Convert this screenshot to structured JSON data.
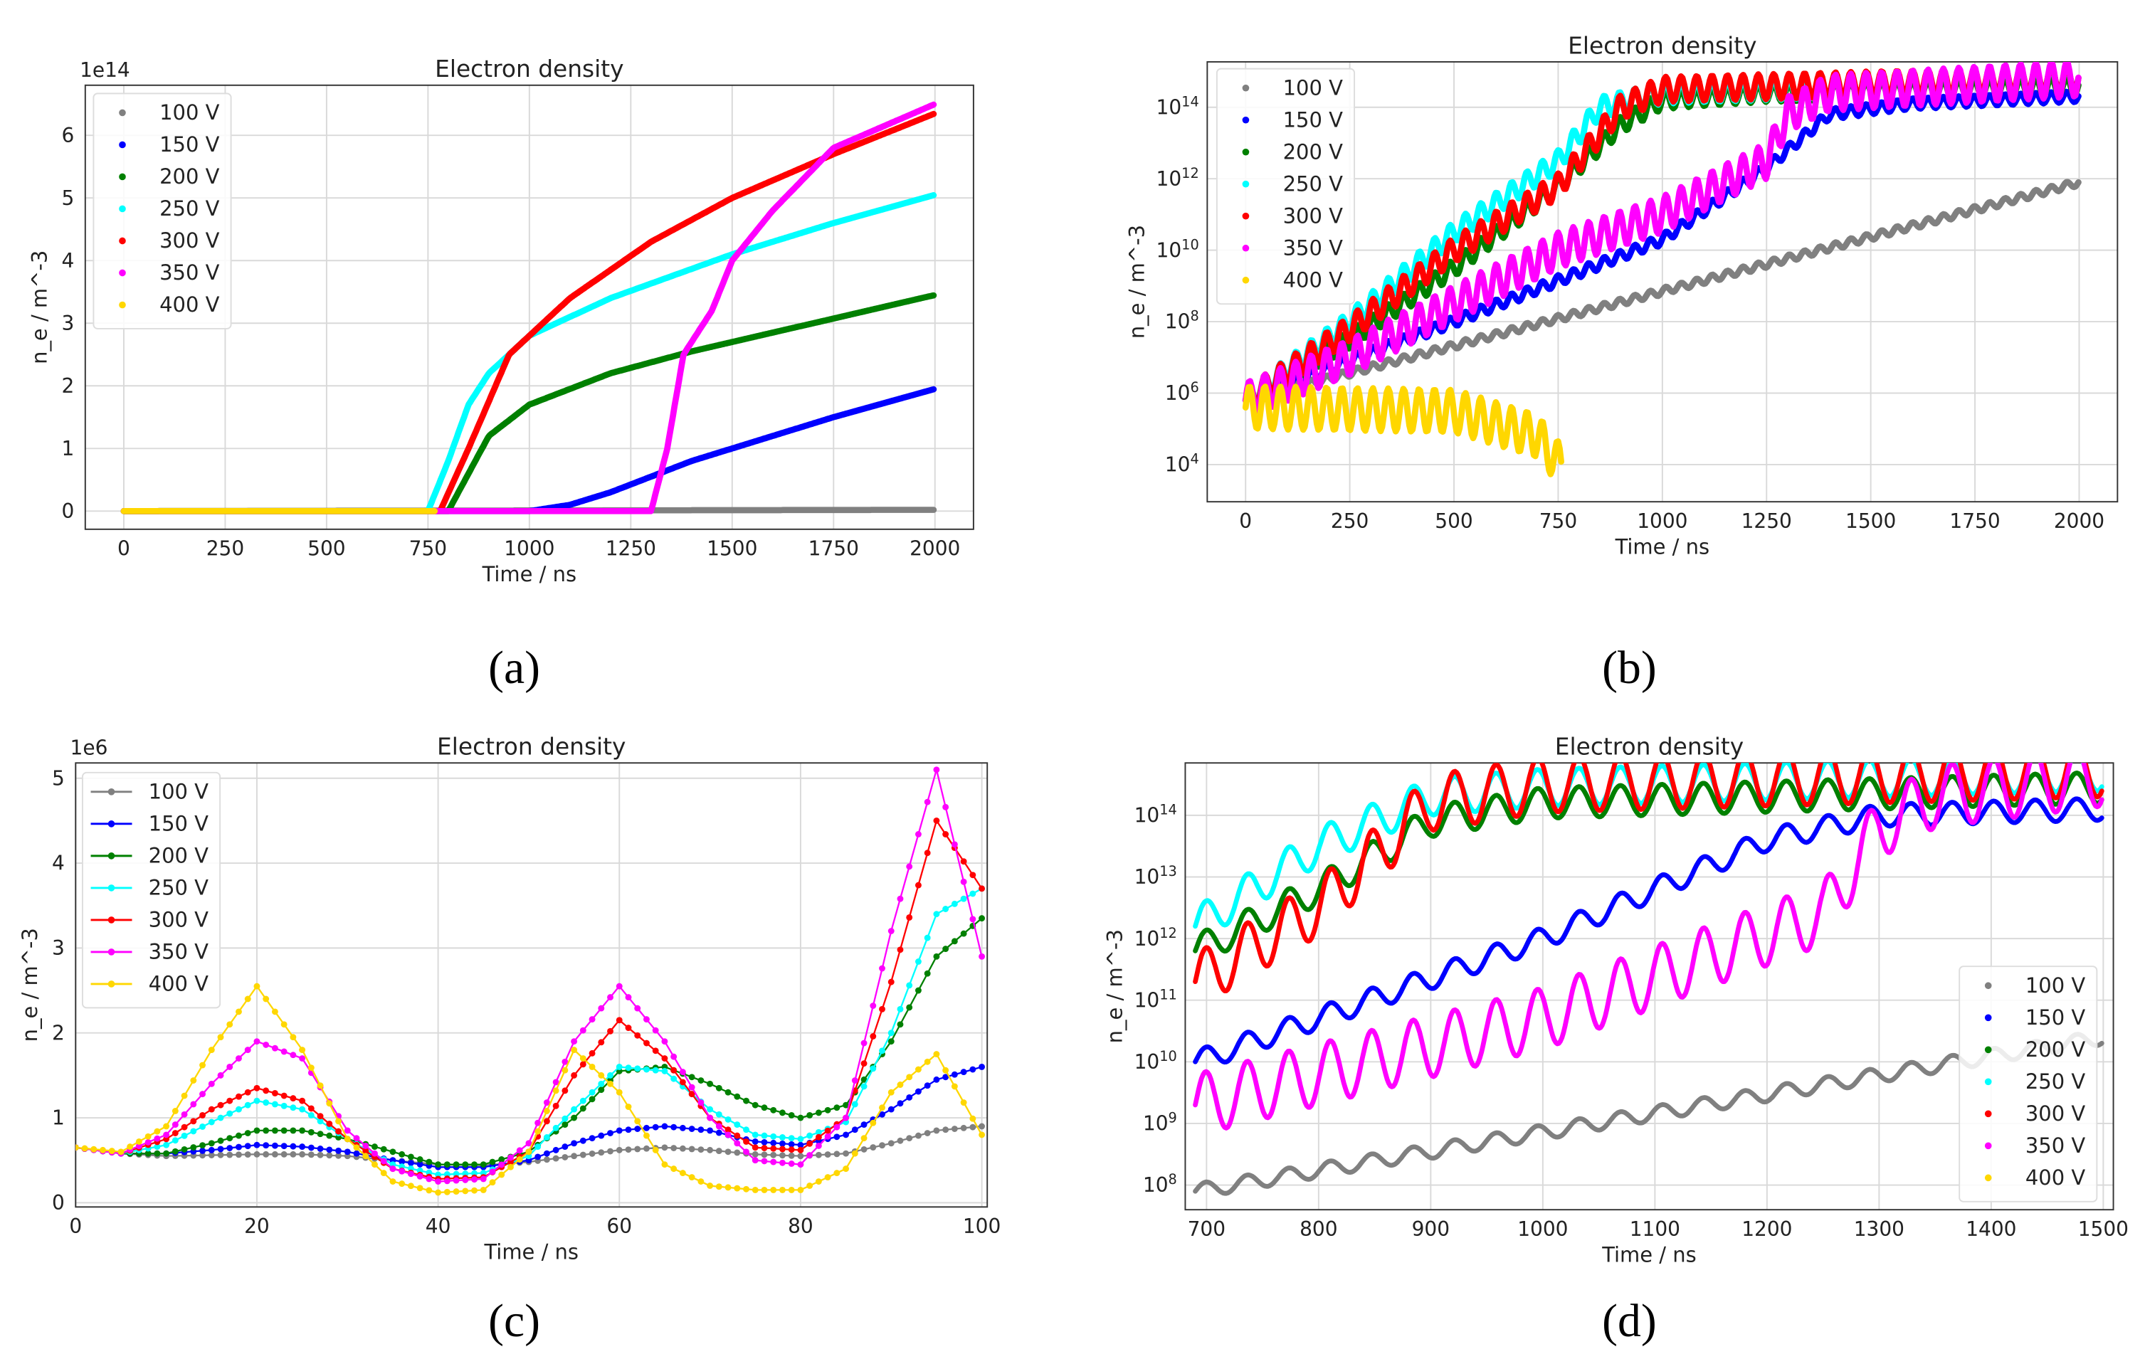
{
  "captions": [
    "(a)",
    "(b)",
    "(c)",
    "(d)"
  ],
  "chart_data": [
    {
      "type": "scatter",
      "title": "Electron density",
      "xlabel": "Time / ns",
      "ylabel": "n_e / m^-3",
      "yscale": "linear",
      "offset_label": "1e14",
      "xlim": [
        -95,
        2095
      ],
      "ylim": [
        -0.29,
        6.8
      ],
      "xticks": [
        0,
        250,
        500,
        750,
        1000,
        1250,
        1500,
        1750,
        2000
      ],
      "yticks": [
        0,
        1,
        2,
        3,
        4,
        5,
        6
      ],
      "grid": true,
      "legend": "top-left",
      "legend_style": "dot",
      "series": [
        {
          "name": "100 V",
          "color": "#808080",
          "points": [
            [
              0,
              0
            ],
            [
              2000,
              0.02
            ]
          ]
        },
        {
          "name": "150 V",
          "color": "#0000ff",
          "points": [
            [
              0,
              0
            ],
            [
              1000,
              0
            ],
            [
              1100,
              0.1
            ],
            [
              1200,
              0.3
            ],
            [
              1300,
              0.55
            ],
            [
              1400,
              0.8
            ],
            [
              1500,
              1.0
            ],
            [
              1750,
              1.5
            ],
            [
              2000,
              1.95
            ]
          ]
        },
        {
          "name": "200 V",
          "color": "#008000",
          "points": [
            [
              0,
              0
            ],
            [
              800,
              0
            ],
            [
              850,
              0.6
            ],
            [
              900,
              1.2
            ],
            [
              1000,
              1.7
            ],
            [
              1200,
              2.2
            ],
            [
              1400,
              2.55
            ],
            [
              1600,
              2.85
            ],
            [
              1800,
              3.15
            ],
            [
              2000,
              3.45
            ]
          ]
        },
        {
          "name": "250 V",
          "color": "#00ffff",
          "points": [
            [
              0,
              0
            ],
            [
              750,
              0
            ],
            [
              800,
              0.8
            ],
            [
              850,
              1.7
            ],
            [
              900,
              2.2
            ],
            [
              1000,
              2.8
            ],
            [
              1200,
              3.4
            ],
            [
              1500,
              4.1
            ],
            [
              1750,
              4.6
            ],
            [
              2000,
              5.05
            ]
          ]
        },
        {
          "name": "300 V",
          "color": "#ff0000",
          "points": [
            [
              0,
              0
            ],
            [
              780,
              0
            ],
            [
              850,
              1.0
            ],
            [
              950,
              2.5
            ],
            [
              1100,
              3.4
            ],
            [
              1300,
              4.3
            ],
            [
              1500,
              5.0
            ],
            [
              1750,
              5.7
            ],
            [
              2000,
              6.35
            ]
          ]
        },
        {
          "name": "350 V",
          "color": "#ff00ff",
          "points": [
            [
              0,
              0
            ],
            [
              1300,
              0
            ],
            [
              1340,
              1.0
            ],
            [
              1380,
              2.5
            ],
            [
              1450,
              3.2
            ],
            [
              1500,
              4.0
            ],
            [
              1600,
              4.8
            ],
            [
              1750,
              5.8
            ],
            [
              2000,
              6.5
            ]
          ]
        },
        {
          "name": "400 V",
          "color": "#ffd700",
          "points": [
            [
              0,
              0
            ],
            [
              770,
              0
            ]
          ]
        }
      ]
    },
    {
      "type": "scatter",
      "title": "Electron density",
      "xlabel": "Time / ns",
      "ylabel": "n_e / m^-3",
      "yscale": "log",
      "y_values_are_log10": true,
      "xlim": [
        -92,
        2092
      ],
      "ylim": [
        2.96,
        15.27
      ],
      "xticks": [
        0,
        250,
        500,
        750,
        1000,
        1250,
        1500,
        1750,
        2000
      ],
      "yticks": [
        4,
        6,
        8,
        10,
        12,
        14
      ],
      "grid": true,
      "legend": "top-left",
      "legend_style": "dot",
      "oscillation_period_ns": 37,
      "series": [
        {
          "name": "100 V",
          "color": "#808080",
          "osc_amplitude": 0.1,
          "points": [
            [
              0,
              5.8
            ],
            [
              2000,
              11.9
            ]
          ]
        },
        {
          "name": "150 V",
          "color": "#0000ff",
          "osc_amplitude": 0.15,
          "points": [
            [
              0,
              5.8
            ],
            [
              500,
              8
            ],
            [
              1000,
              10.3
            ],
            [
              1250,
              12.3
            ],
            [
              1400,
              13.8
            ],
            [
              1600,
              14.1
            ],
            [
              2000,
              14.3
            ]
          ]
        },
        {
          "name": "200 V",
          "color": "#008000",
          "osc_amplitude": 0.25,
          "points": [
            [
              0,
              5.8
            ],
            [
              250,
              7.5
            ],
            [
              500,
              9.5
            ],
            [
              750,
              11.8
            ],
            [
              900,
              13.5
            ],
            [
              1000,
              14.2
            ],
            [
              1250,
              14.4
            ],
            [
              2000,
              14.6
            ]
          ]
        },
        {
          "name": "250 V",
          "color": "#00ffff",
          "osc_amplitude": 0.3,
          "points": [
            [
              0,
              5.8
            ],
            [
              250,
              8
            ],
            [
              500,
              10.5
            ],
            [
              750,
              12.5
            ],
            [
              850,
              14
            ],
            [
              1000,
              14.4
            ],
            [
              2000,
              14.8
            ]
          ]
        },
        {
          "name": "300 V",
          "color": "#ff0000",
          "osc_amplitude": 0.35,
          "points": [
            [
              0,
              5.8
            ],
            [
              250,
              7.8
            ],
            [
              500,
              10
            ],
            [
              750,
              11.8
            ],
            [
              900,
              14
            ],
            [
              1000,
              14.5
            ],
            [
              2000,
              14.8
            ]
          ]
        },
        {
          "name": "350 V",
          "color": "#ff00ff",
          "osc_amplitude": 0.5,
          "points": [
            [
              0,
              5.8
            ],
            [
              250,
              7
            ],
            [
              500,
              8.5
            ],
            [
              750,
              10
            ],
            [
              1000,
              11
            ],
            [
              1250,
              12.5
            ],
            [
              1300,
              13.8
            ],
            [
              1400,
              14.4
            ],
            [
              2000,
              14.8
            ]
          ]
        },
        {
          "name": "400 V",
          "color": "#ffd700",
          "osc_amplitude": 0.6,
          "points": [
            [
              0,
              5.6
            ],
            [
              500,
              5.5
            ],
            [
              700,
              4.8
            ],
            [
              760,
              3.9
            ]
          ]
        }
      ]
    },
    {
      "type": "line",
      "title": "Electron density",
      "xlabel": "Time / ns",
      "ylabel": "n_e / m^-3",
      "yscale": "linear",
      "offset_label": "1e6",
      "xlim": [
        0,
        100.6
      ],
      "ylim": [
        -0.05,
        5.18
      ],
      "xticks": [
        0,
        20,
        40,
        60,
        80,
        100
      ],
      "yticks": [
        0,
        1,
        2,
        3,
        4,
        5
      ],
      "grid": true,
      "legend": "top-left",
      "legend_style": "line-marker",
      "x": [
        0,
        5,
        10,
        15,
        20,
        25,
        30,
        35,
        40,
        45,
        50,
        55,
        60,
        65,
        70,
        75,
        80,
        85,
        90,
        95,
        100
      ],
      "series": [
        {
          "name": "100 V",
          "color": "#808080",
          "values": [
            0.65,
            0.58,
            0.55,
            0.56,
            0.57,
            0.57,
            0.55,
            0.5,
            0.45,
            0.44,
            0.48,
            0.55,
            0.62,
            0.65,
            0.62,
            0.57,
            0.55,
            0.58,
            0.7,
            0.85,
            0.9
          ]
        },
        {
          "name": "150 V",
          "color": "#0000ff",
          "values": [
            0.65,
            0.58,
            0.58,
            0.62,
            0.68,
            0.66,
            0.6,
            0.5,
            0.42,
            0.42,
            0.5,
            0.7,
            0.85,
            0.9,
            0.85,
            0.72,
            0.68,
            0.8,
            1.1,
            1.45,
            1.6
          ]
        },
        {
          "name": "200 V",
          "color": "#008000",
          "values": [
            0.65,
            0.58,
            0.58,
            0.7,
            0.85,
            0.85,
            0.75,
            0.6,
            0.45,
            0.45,
            0.6,
            1.0,
            1.55,
            1.6,
            1.4,
            1.15,
            1.0,
            1.15,
            1.9,
            2.9,
            3.35
          ]
        },
        {
          "name": "250 V",
          "color": "#00ffff",
          "values": [
            0.65,
            0.58,
            0.68,
            0.95,
            1.2,
            1.1,
            0.75,
            0.45,
            0.33,
            0.35,
            0.55,
            1.1,
            1.6,
            1.55,
            1.1,
            0.8,
            0.75,
            0.95,
            2.0,
            3.4,
            3.7
          ]
        },
        {
          "name": "300 V",
          "color": "#ff0000",
          "values": [
            0.65,
            0.58,
            0.75,
            1.1,
            1.35,
            1.2,
            0.75,
            0.4,
            0.28,
            0.3,
            0.6,
            1.5,
            2.15,
            1.7,
            1.0,
            0.65,
            0.62,
            1.0,
            2.6,
            4.5,
            3.7
          ]
        },
        {
          "name": "350 V",
          "color": "#ff00ff",
          "values": [
            0.65,
            0.58,
            0.8,
            1.4,
            1.9,
            1.7,
            0.85,
            0.4,
            0.25,
            0.28,
            0.7,
            1.9,
            2.55,
            1.9,
            1.0,
            0.5,
            0.45,
            1.0,
            3.2,
            5.1,
            2.9
          ]
        },
        {
          "name": "400 V",
          "color": "#ffd700",
          "values": [
            0.65,
            0.6,
            0.9,
            1.8,
            2.55,
            1.8,
            0.75,
            0.25,
            0.12,
            0.15,
            0.6,
            1.8,
            1.3,
            0.45,
            0.2,
            0.15,
            0.15,
            0.4,
            1.3,
            1.75,
            0.8
          ]
        }
      ]
    },
    {
      "type": "scatter",
      "title": "Electron density",
      "xlabel": "Time / ns",
      "ylabel": "n_e / m^-3",
      "yscale": "log",
      "y_values_are_log10": true,
      "xlim": [
        681,
        1509
      ],
      "ylim": [
        7.6,
        14.85
      ],
      "xticks": [
        700,
        800,
        900,
        1000,
        1100,
        1200,
        1300,
        1400,
        1500
      ],
      "yticks": [
        8,
        9,
        10,
        11,
        12,
        13,
        14
      ],
      "grid": true,
      "legend": "bottom-right",
      "legend_style": "dot",
      "oscillation_period_ns": 37,
      "series": [
        {
          "name": "100 V",
          "color": "#808080",
          "osc_amplitude": 0.12,
          "points": [
            [
              690,
              7.9
            ],
            [
              1500,
              10.4
            ]
          ]
        },
        {
          "name": "150 V",
          "color": "#0000ff",
          "osc_amplitude": 0.18,
          "points": [
            [
              690,
              10.0
            ],
            [
              1000,
              12.0
            ],
            [
              1200,
              13.6
            ],
            [
              1300,
              14.0
            ],
            [
              1500,
              14.1
            ]
          ]
        },
        {
          "name": "200 V",
          "color": "#008000",
          "osc_amplitude": 0.25,
          "points": [
            [
              690,
              11.8
            ],
            [
              800,
              12.8
            ],
            [
              900,
              13.9
            ],
            [
              1000,
              14.2
            ],
            [
              1500,
              14.45
            ]
          ]
        },
        {
          "name": "250 V",
          "color": "#00ffff",
          "osc_amplitude": 0.3,
          "points": [
            [
              690,
              12.2
            ],
            [
              800,
              13.5
            ],
            [
              900,
              14.3
            ],
            [
              1000,
              14.45
            ],
            [
              1500,
              14.7
            ]
          ]
        },
        {
          "name": "300 V",
          "color": "#ff0000",
          "osc_amplitude": 0.45,
          "points": [
            [
              690,
              11.3
            ],
            [
              800,
              12.5
            ],
            [
              900,
              14.2
            ],
            [
              1000,
              14.5
            ],
            [
              1500,
              14.75
            ]
          ]
        },
        {
          "name": "350 V",
          "color": "#ff00ff",
          "osc_amplitude": 0.5,
          "points": [
            [
              690,
              9.3
            ],
            [
              1000,
              10.7
            ],
            [
              1250,
              12.4
            ],
            [
              1300,
              13.8
            ],
            [
              1350,
              14.3
            ],
            [
              1500,
              14.65
            ]
          ]
        },
        {
          "name": "400 V",
          "color": "#ffd700",
          "points": []
        }
      ]
    }
  ]
}
